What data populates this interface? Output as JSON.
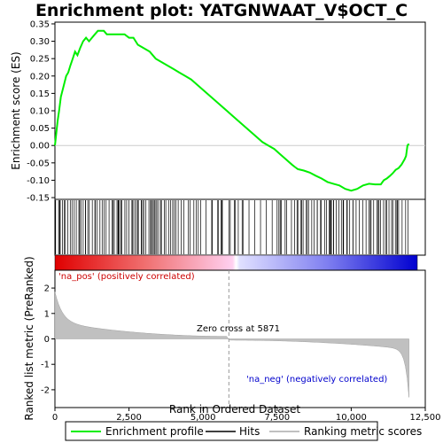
{
  "chart_data": {
    "type": "line",
    "title": "Enrichment plot: YATGNWAAT_V$OCT_C",
    "xlabel": "Rank in Ordered Dataset",
    "ylabel_top": "Enrichment score (ES)",
    "ylabel_bottom": "Ranked list metric (PreRanked)",
    "xlim": [
      0,
      12500
    ],
    "x_ticks": [
      0,
      2500,
      5000,
      7500,
      10000,
      12500
    ],
    "x_tick_labels": [
      "0",
      "2,500",
      "5,000",
      "7,500",
      "10,000",
      "12,500"
    ],
    "es_ylim": [
      -0.155,
      0.355
    ],
    "es_ticks": [
      -0.15,
      -0.1,
      -0.05,
      0.0,
      0.05,
      0.1,
      0.15,
      0.2,
      0.25,
      0.3,
      0.35
    ],
    "es_tick_labels": [
      "-0.15",
      "-0.10",
      "-0.05",
      "0.00",
      "0.05",
      "0.10",
      "0.15",
      "0.20",
      "0.25",
      "0.30",
      "0.35"
    ],
    "metric_ylim": [
      -2.7,
      2.7
    ],
    "metric_ticks": [
      -2,
      -1,
      0,
      1,
      2
    ],
    "metric_tick_labels": [
      "-2",
      "-1",
      "0",
      "1",
      "2"
    ],
    "n_genes": 11950,
    "zero_cross_rank": 5871,
    "zero_cross_label": "Zero cross at 5871",
    "pos_label": "'na_pos' (positively correlated)",
    "neg_label": "'na_neg' (negatively correlated)",
    "series": [
      {
        "name": "Enrichment profile",
        "color": "#00ee00",
        "x": [
          0,
          40,
          90,
          140,
          200,
          260,
          320,
          380,
          450,
          520,
          600,
          680,
          760,
          850,
          950,
          1050,
          1150,
          1250,
          1350,
          1450,
          1550,
          1650,
          1750,
          1900,
          2050,
          2200,
          2350,
          2500,
          2650,
          2800,
          3000,
          3200,
          3400,
          3600,
          3800,
          4000,
          4200,
          4400,
          4600,
          4800,
          5000,
          5200,
          5400,
          5600,
          5800,
          6000,
          6200,
          6400,
          6600,
          6800,
          7000,
          7200,
          7400,
          7600,
          7800,
          8000,
          8100,
          8200,
          8400,
          8600,
          8800,
          9000,
          9200,
          9400,
          9600,
          9800,
          10000,
          10200,
          10400,
          10600,
          10800,
          11000,
          11100,
          11200,
          11300,
          11400,
          11500,
          11600,
          11700,
          11800,
          11850,
          11900,
          11950
        ],
        "y": [
          0.0,
          0.03,
          0.07,
          0.1,
          0.14,
          0.16,
          0.18,
          0.2,
          0.21,
          0.23,
          0.25,
          0.27,
          0.26,
          0.28,
          0.3,
          0.31,
          0.3,
          0.31,
          0.32,
          0.33,
          0.33,
          0.33,
          0.32,
          0.32,
          0.32,
          0.32,
          0.32,
          0.31,
          0.31,
          0.29,
          0.28,
          0.27,
          0.25,
          0.24,
          0.23,
          0.22,
          0.21,
          0.2,
          0.19,
          0.175,
          0.16,
          0.145,
          0.13,
          0.115,
          0.1,
          0.085,
          0.07,
          0.055,
          0.04,
          0.025,
          0.01,
          0.0,
          -0.01,
          -0.025,
          -0.04,
          -0.055,
          -0.062,
          -0.068,
          -0.072,
          -0.078,
          -0.087,
          -0.095,
          -0.105,
          -0.11,
          -0.115,
          -0.125,
          -0.13,
          -0.125,
          -0.115,
          -0.11,
          -0.112,
          -0.112,
          -0.1,
          -0.095,
          -0.088,
          -0.08,
          -0.07,
          -0.065,
          -0.055,
          -0.04,
          -0.03,
          0.0,
          0.005
        ]
      }
    ],
    "legend": [
      "Enrichment profile",
      "Hits",
      "Ranking metric scores"
    ],
    "legend_placement": "bottom",
    "hits_density_note": "",
    "colors": {
      "es_line": "#00ee00",
      "hit": "#000000",
      "metric_fill": "#c0c0c0",
      "pos_text": "#cc0000",
      "neg_text": "#0000cc",
      "zero_line": "#999999"
    }
  }
}
